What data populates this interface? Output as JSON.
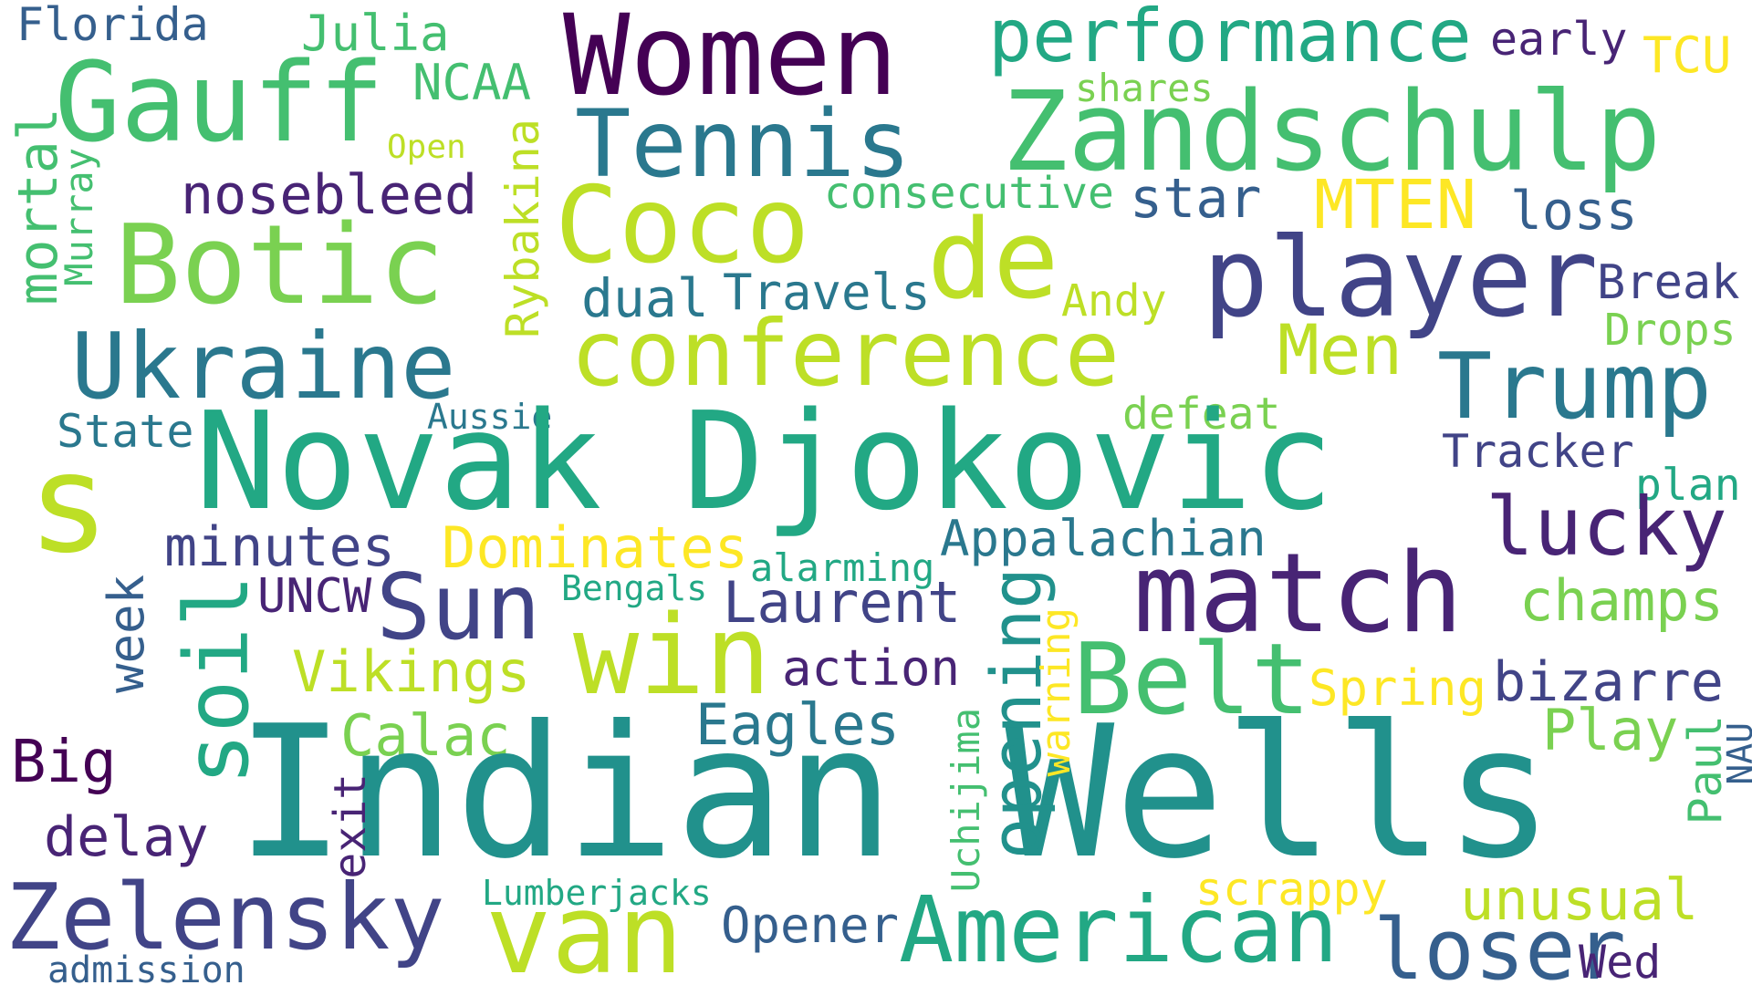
{
  "words": {
    "florida": "Florida",
    "julia": "Julia",
    "women": "Women",
    "performance": "performance",
    "early": "early",
    "tcu": "TCU",
    "gauff": "Gauff",
    "ncaa": "NCAA",
    "shares": "shares",
    "zandschulp": "Zandschulp",
    "tennis": "Tennis",
    "open": "Open",
    "nosebleed": "nosebleed",
    "coco": "Coco",
    "consecutive": "consecutive",
    "star": "star",
    "mten": "MTEN",
    "loss": "loss",
    "mortal": "mortal",
    "murray": "Murray",
    "botic": "Botic",
    "rybakina": "Rybakina",
    "de": "de",
    "player": "player",
    "break": "Break",
    "dual": "dual",
    "travels": "Travels",
    "andy": "Andy",
    "drops": "Drops",
    "ukraine": "Ukraine",
    "conference": "conference",
    "men": "Men",
    "trump": "Trump",
    "state": "State",
    "aussie": "Aussie",
    "defeat": "defeat",
    "novak_djokovic": "Novak Djokovic",
    "tracker": "Tracker",
    "s": "s",
    "plan": "plan",
    "lucky": "lucky",
    "minutes": "minutes",
    "dominates": "Dominates",
    "appalachian": "Appalachian",
    "alarming": "alarming",
    "match": "match",
    "bengals": "Bengals",
    "week": "week",
    "uncw": "UNCW",
    "sun": "Sun",
    "soil": "soil",
    "laurent": "Laurent",
    "opening": "opening",
    "champs": "champs",
    "win": "win",
    "action": "action",
    "warning": "warning",
    "belt": "Belt",
    "vikings": "Vikings",
    "spring": "Spring",
    "bizarre": "bizarre",
    "eagles": "Eagles",
    "calac": "Calac",
    "uchijima": "Uchijima",
    "play": "Play",
    "big": "Big",
    "paul": "Paul",
    "nau": "NAU",
    "indian_wells": "Indian Wells",
    "exit": "exit",
    "delay": "delay",
    "zelensky": "Zelensky",
    "lumberjacks": "Lumberjacks",
    "scrappy": "scrappy",
    "unusual": "unusual",
    "van": "van",
    "american": "American",
    "opener": "Opener",
    "loser": "loser",
    "wed": "Wed",
    "admission": "admission"
  },
  "palette": {
    "dark_purple": "#440154",
    "purple": "#482475",
    "indigo": "#414487",
    "blue": "#355f8d",
    "steel_blue": "#2a788e",
    "teal": "#21918c",
    "green_teal": "#22a884",
    "green": "#44bf70",
    "light_green": "#7ad151",
    "lime": "#bddf26",
    "yellow": "#fde725"
  }
}
